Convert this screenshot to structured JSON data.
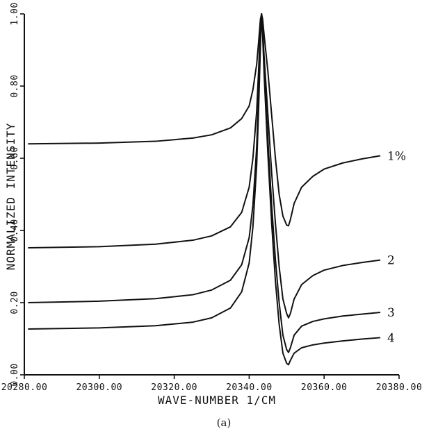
{
  "chart_data": {
    "type": "line",
    "title": "",
    "xlabel": "WAVE-NUMBER 1/CM",
    "ylabel": "NORMALIZED INTENSITY",
    "caption": "(a)",
    "xlim": [
      20280,
      20380
    ],
    "ylim": [
      0,
      1
    ],
    "grid": false,
    "x_ticks": [
      20280,
      20300,
      20320,
      20340,
      20360,
      20380
    ],
    "x_tick_labels": [
      "20280.00",
      "20300.00",
      "20320.00",
      "20340.00",
      "20360.00",
      "20380.00"
    ],
    "y_ticks": [
      0,
      0.2,
      0.4,
      0.6,
      0.8,
      1.0
    ],
    "y_tick_labels": [
      "0.00",
      "0.20",
      "0.40",
      "0.60",
      "0.80",
      "1.00"
    ],
    "series": [
      {
        "name": "1%",
        "points": [
          [
            20281,
            0.64
          ],
          [
            20300,
            0.642
          ],
          [
            20315,
            0.647
          ],
          [
            20325,
            0.656
          ],
          [
            20330,
            0.665
          ],
          [
            20335,
            0.684
          ],
          [
            20338,
            0.71
          ],
          [
            20340,
            0.745
          ],
          [
            20341,
            0.79
          ],
          [
            20342,
            0.86
          ],
          [
            20342.5,
            0.92
          ],
          [
            20343,
            0.985
          ],
          [
            20343.3,
            1.0
          ],
          [
            20343.6,
            0.985
          ],
          [
            20344,
            0.94
          ],
          [
            20345,
            0.84
          ],
          [
            20346,
            0.72
          ],
          [
            20347,
            0.6
          ],
          [
            20348,
            0.5
          ],
          [
            20349,
            0.44
          ],
          [
            20350,
            0.415
          ],
          [
            20350.5,
            0.413
          ],
          [
            20351,
            0.43
          ],
          [
            20352,
            0.475
          ],
          [
            20354,
            0.52
          ],
          [
            20357,
            0.55
          ],
          [
            20360,
            0.57
          ],
          [
            20365,
            0.587
          ],
          [
            20370,
            0.598
          ],
          [
            20375,
            0.607
          ]
        ]
      },
      {
        "name": "2",
        "points": [
          [
            20281,
            0.352
          ],
          [
            20300,
            0.355
          ],
          [
            20315,
            0.362
          ],
          [
            20325,
            0.373
          ],
          [
            20330,
            0.385
          ],
          [
            20335,
            0.41
          ],
          [
            20338,
            0.45
          ],
          [
            20340,
            0.52
          ],
          [
            20341,
            0.6
          ],
          [
            20342,
            0.73
          ],
          [
            20342.5,
            0.84
          ],
          [
            20343,
            0.96
          ],
          [
            20343.3,
            1.0
          ],
          [
            20343.6,
            0.96
          ],
          [
            20344,
            0.88
          ],
          [
            20345,
            0.72
          ],
          [
            20346,
            0.56
          ],
          [
            20347,
            0.42
          ],
          [
            20348,
            0.3
          ],
          [
            20349,
            0.21
          ],
          [
            20350,
            0.17
          ],
          [
            20350.5,
            0.158
          ],
          [
            20351,
            0.17
          ],
          [
            20352,
            0.21
          ],
          [
            20354,
            0.25
          ],
          [
            20357,
            0.275
          ],
          [
            20360,
            0.29
          ],
          [
            20365,
            0.303
          ],
          [
            20370,
            0.311
          ],
          [
            20375,
            0.318
          ]
        ]
      },
      {
        "name": "3",
        "points": [
          [
            20281,
            0.2
          ],
          [
            20300,
            0.204
          ],
          [
            20315,
            0.211
          ],
          [
            20325,
            0.222
          ],
          [
            20330,
            0.235
          ],
          [
            20335,
            0.262
          ],
          [
            20338,
            0.305
          ],
          [
            20340,
            0.38
          ],
          [
            20341,
            0.47
          ],
          [
            20342,
            0.63
          ],
          [
            20342.5,
            0.77
          ],
          [
            20343,
            0.93
          ],
          [
            20343.3,
            1.0
          ],
          [
            20343.6,
            0.95
          ],
          [
            20344,
            0.85
          ],
          [
            20345,
            0.65
          ],
          [
            20346,
            0.47
          ],
          [
            20347,
            0.32
          ],
          [
            20348,
            0.2
          ],
          [
            20349,
            0.11
          ],
          [
            20350,
            0.07
          ],
          [
            20350.5,
            0.062
          ],
          [
            20351,
            0.075
          ],
          [
            20352,
            0.11
          ],
          [
            20354,
            0.135
          ],
          [
            20357,
            0.148
          ],
          [
            20360,
            0.155
          ],
          [
            20365,
            0.163
          ],
          [
            20370,
            0.168
          ],
          [
            20375,
            0.173
          ]
        ]
      },
      {
        "name": "4",
        "points": [
          [
            20281,
            0.127
          ],
          [
            20300,
            0.13
          ],
          [
            20315,
            0.136
          ],
          [
            20325,
            0.146
          ],
          [
            20330,
            0.158
          ],
          [
            20335,
            0.185
          ],
          [
            20338,
            0.23
          ],
          [
            20340,
            0.31
          ],
          [
            20341,
            0.41
          ],
          [
            20342,
            0.58
          ],
          [
            20342.5,
            0.73
          ],
          [
            20343,
            0.91
          ],
          [
            20343.3,
            1.0
          ],
          [
            20343.6,
            0.94
          ],
          [
            20344,
            0.83
          ],
          [
            20345,
            0.61
          ],
          [
            20346,
            0.42
          ],
          [
            20347,
            0.26
          ],
          [
            20348,
            0.14
          ],
          [
            20349,
            0.06
          ],
          [
            20350,
            0.032
          ],
          [
            20350.5,
            0.028
          ],
          [
            20351,
            0.04
          ],
          [
            20352,
            0.06
          ],
          [
            20354,
            0.075
          ],
          [
            20357,
            0.083
          ],
          [
            20360,
            0.088
          ],
          [
            20365,
            0.094
          ],
          [
            20370,
            0.099
          ],
          [
            20375,
            0.103
          ]
        ]
      }
    ]
  }
}
